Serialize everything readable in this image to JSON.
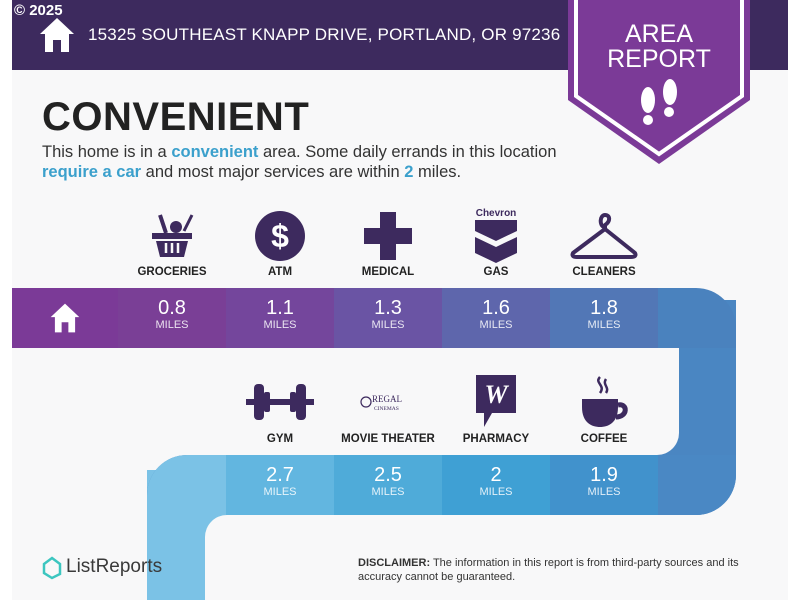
{
  "copyright": "© 2025",
  "address": "15325 SOUTHEAST KNAPP DRIVE, PORTLAND, OR 97236",
  "badge": {
    "line1": "AREA",
    "line2": "REPORT",
    "icon": "footprints-icon"
  },
  "rating": "CONVENIENT",
  "description": {
    "p1": "This home is in a ",
    "h1": "convenient",
    "p2": " area. Some daily errands in this location ",
    "h2": "require a car",
    "p3": " and most major services are within ",
    "h3": "2",
    "p4": " miles."
  },
  "unit": "MILES",
  "top_row": [
    {
      "label": "GROCERIES",
      "distance": "0.8",
      "icon": "grocery-basket-icon",
      "color": "#7a3f96"
    },
    {
      "label": "ATM",
      "distance": "1.1",
      "icon": "dollar-icon",
      "color": "#74469c"
    },
    {
      "label": "MEDICAL",
      "distance": "1.3",
      "icon": "medical-cross-icon",
      "color": "#6a54a4"
    },
    {
      "label": "GAS",
      "distance": "1.6",
      "icon": "chevron-logo-icon",
      "logo_text": "Chevron",
      "color": "#5e66ac"
    },
    {
      "label": "CLEANERS",
      "distance": "1.8",
      "icon": "hanger-icon",
      "color": "#5277b6"
    }
  ],
  "bottom_row": [
    {
      "label": "GYM",
      "distance": "2.7",
      "icon": "dumbbell-icon",
      "color": "#62b6e0"
    },
    {
      "label": "MOVIE THEATER",
      "distance": "2.5",
      "icon": "regal-cinemas-logo",
      "logo_text": "REGAL CINEMAS",
      "color": "#4fabd9"
    },
    {
      "label": "PHARMACY",
      "distance": "2",
      "icon": "walgreens-logo-icon",
      "color": "#3fa0d4"
    },
    {
      "label": "COFFEE",
      "distance": "1.9",
      "icon": "coffee-cup-icon",
      "color": "#4192cc"
    }
  ],
  "footer": {
    "logo": "ListReports",
    "disclaimer_label": "DISCLAIMER:",
    "disclaimer": " The information in this report is from third-party sources and its accuracy cannot be guaranteed."
  }
}
